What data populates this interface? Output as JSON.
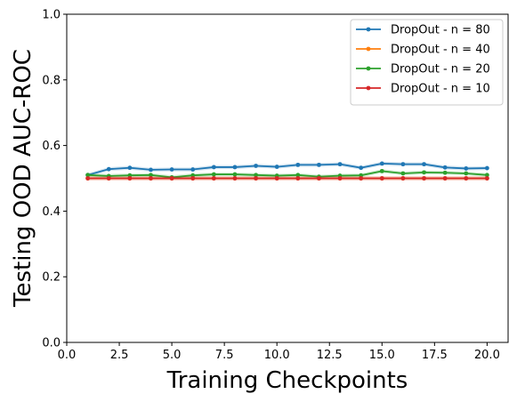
{
  "chart_data": {
    "type": "line",
    "title": "",
    "xlabel": "Training Checkpoints",
    "ylabel": "Testing OOD AUC-ROC",
    "xlim": [
      0.0,
      21.0
    ],
    "ylim": [
      0.0,
      1.0
    ],
    "xticks": [
      "0.0",
      "2.5",
      "5.0",
      "7.5",
      "10.0",
      "12.5",
      "15.0",
      "17.5",
      "20.0"
    ],
    "yticks": [
      "0.0",
      "0.2",
      "0.4",
      "0.6",
      "0.8",
      "1.0"
    ],
    "grid": false,
    "legend_position": "top-right",
    "x": [
      1,
      2,
      3,
      4,
      5,
      6,
      7,
      8,
      9,
      10,
      11,
      12,
      13,
      14,
      15,
      16,
      17,
      18,
      19,
      20
    ],
    "series": [
      {
        "name": "DropOut - n = 80",
        "color": "#1f77b4",
        "values": [
          0.51,
          0.528,
          0.532,
          0.526,
          0.527,
          0.527,
          0.534,
          0.534,
          0.538,
          0.535,
          0.541,
          0.541,
          0.543,
          0.532,
          0.545,
          0.543,
          0.543,
          0.533,
          0.53,
          0.531
        ]
      },
      {
        "name": "DropOut - n = 40",
        "color": "#ff7f0e",
        "values": [
          0.5,
          0.5,
          0.5,
          0.5,
          0.5,
          0.5,
          0.5,
          0.5,
          0.5,
          0.5,
          0.5,
          0.5,
          0.5,
          0.5,
          0.5,
          0.5,
          0.5,
          0.5,
          0.5,
          0.5
        ]
      },
      {
        "name": "DropOut - n = 20",
        "color": "#2ca02c",
        "values": [
          0.51,
          0.507,
          0.509,
          0.51,
          0.503,
          0.509,
          0.512,
          0.512,
          0.51,
          0.508,
          0.51,
          0.505,
          0.508,
          0.509,
          0.522,
          0.515,
          0.518,
          0.517,
          0.515,
          0.51
        ]
      },
      {
        "name": "DropOut - n = 10",
        "color": "#d62728",
        "values": [
          0.5,
          0.5,
          0.5,
          0.5,
          0.5,
          0.5,
          0.5,
          0.5,
          0.5,
          0.5,
          0.5,
          0.5,
          0.5,
          0.5,
          0.5,
          0.5,
          0.5,
          0.5,
          0.5,
          0.5
        ]
      }
    ]
  }
}
